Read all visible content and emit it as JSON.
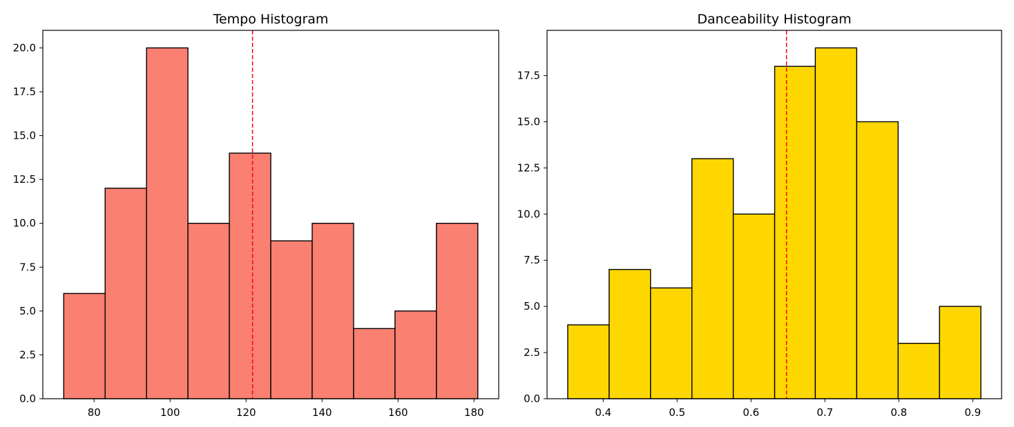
{
  "chart_data": [
    {
      "type": "bar",
      "title": "Tempo Histogram",
      "xlabel": "",
      "ylabel": "",
      "bar_color": "#FA8072",
      "edge_color": "#000000",
      "bins": [
        {
          "x0": 72.0,
          "x1": 82.9,
          "count": 6
        },
        {
          "x0": 82.9,
          "x1": 93.8,
          "count": 12
        },
        {
          "x0": 93.8,
          "x1": 104.7,
          "count": 20
        },
        {
          "x0": 104.7,
          "x1": 115.6,
          "count": 10
        },
        {
          "x0": 115.6,
          "x1": 126.5,
          "count": 14
        },
        {
          "x0": 126.5,
          "x1": 137.4,
          "count": 9
        },
        {
          "x0": 137.4,
          "x1": 148.3,
          "count": 10
        },
        {
          "x0": 148.3,
          "x1": 159.2,
          "count": 4
        },
        {
          "x0": 159.2,
          "x1": 170.1,
          "count": 5
        },
        {
          "x0": 170.1,
          "x1": 181.0,
          "count": 10
        }
      ],
      "mean_line": {
        "x": 121.7,
        "color": "#FF0000",
        "style": "dashed"
      },
      "xlim": [
        66.5,
        186.5
      ],
      "ylim": [
        0,
        21
      ],
      "xticks": [
        80,
        100,
        120,
        140,
        160,
        180
      ],
      "xtick_labels": [
        "80",
        "100",
        "120",
        "140",
        "160",
        "180"
      ],
      "yticks": [
        0,
        2.5,
        5,
        7.5,
        10,
        12.5,
        15,
        17.5,
        20
      ],
      "ytick_labels": [
        "0.0",
        "2.5",
        "5.0",
        "7.5",
        "10.0",
        "12.5",
        "15.0",
        "17.5",
        "20.0"
      ],
      "grid": false
    },
    {
      "type": "bar",
      "title": "Danceability Histogram",
      "xlabel": "",
      "ylabel": "",
      "bar_color": "#FFD700",
      "edge_color": "#000000",
      "bins": [
        {
          "x0": 0.352,
          "x1": 0.408,
          "count": 4
        },
        {
          "x0": 0.408,
          "x1": 0.464,
          "count": 7
        },
        {
          "x0": 0.464,
          "x1": 0.52,
          "count": 6
        },
        {
          "x0": 0.52,
          "x1": 0.576,
          "count": 13
        },
        {
          "x0": 0.576,
          "x1": 0.632,
          "count": 10
        },
        {
          "x0": 0.632,
          "x1": 0.687,
          "count": 18
        },
        {
          "x0": 0.687,
          "x1": 0.743,
          "count": 19
        },
        {
          "x0": 0.743,
          "x1": 0.799,
          "count": 15
        },
        {
          "x0": 0.799,
          "x1": 0.855,
          "count": 3
        },
        {
          "x0": 0.855,
          "x1": 0.911,
          "count": 5
        }
      ],
      "mean_line": {
        "x": 0.648,
        "color": "#FF0000",
        "style": "dashed"
      },
      "xlim": [
        0.324,
        0.939
      ],
      "ylim": [
        0,
        19.95
      ],
      "xticks": [
        0.4,
        0.5,
        0.6,
        0.7,
        0.8,
        0.9
      ],
      "xtick_labels": [
        "0.4",
        "0.5",
        "0.6",
        "0.7",
        "0.8",
        "0.9"
      ],
      "yticks": [
        0,
        2.5,
        5,
        7.5,
        10,
        12.5,
        15,
        17.5
      ],
      "ytick_labels": [
        "0.0",
        "2.5",
        "5.0",
        "7.5",
        "10.0",
        "12.5",
        "15.0",
        "17.5"
      ],
      "grid": false
    }
  ]
}
